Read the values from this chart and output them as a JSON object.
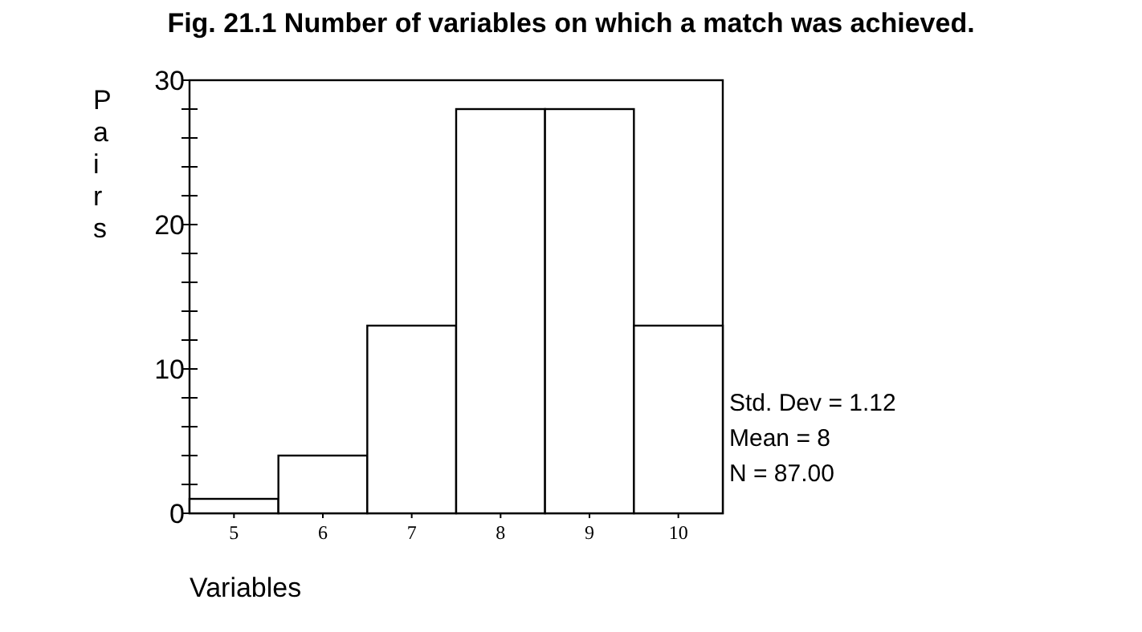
{
  "chart_data": {
    "type": "histogram",
    "title": "Fig. 21.1  Number of variables on which a match was achieved.",
    "xlabel": "Variables",
    "ylabel": "Pairs",
    "bins": [
      4.5,
      5.5,
      6.5,
      7.5,
      8.5,
      9.5,
      10.5
    ],
    "values": [
      1,
      4,
      13,
      28,
      28,
      13
    ],
    "color": "#ffffff",
    "xlim": [
      4.5,
      10.5
    ],
    "xticks": [
      5,
      6,
      7,
      8,
      9,
      10
    ],
    "ylim": [
      0,
      30
    ],
    "yticks": [
      0,
      {
        "value": 2,
        "label": null
      },
      {
        "value": 4,
        "label": null
      },
      {
        "value": 6,
        "label": null
      },
      {
        "value": 8,
        "label": null
      },
      10,
      {
        "value": 12,
        "label": null
      },
      {
        "value": 14,
        "label": null
      },
      {
        "value": 16,
        "label": null
      },
      {
        "value": 18,
        "label": null
      },
      20,
      {
        "value": 22,
        "label": null
      },
      {
        "value": 24,
        "label": null
      },
      {
        "value": 26,
        "label": null
      },
      {
        "value": 28,
        "label": null
      },
      30
    ],
    "grid": false,
    "annotations": [
      "Std. Dev = 1.12",
      "Mean = 8",
      "N = 87.00"
    ]
  }
}
